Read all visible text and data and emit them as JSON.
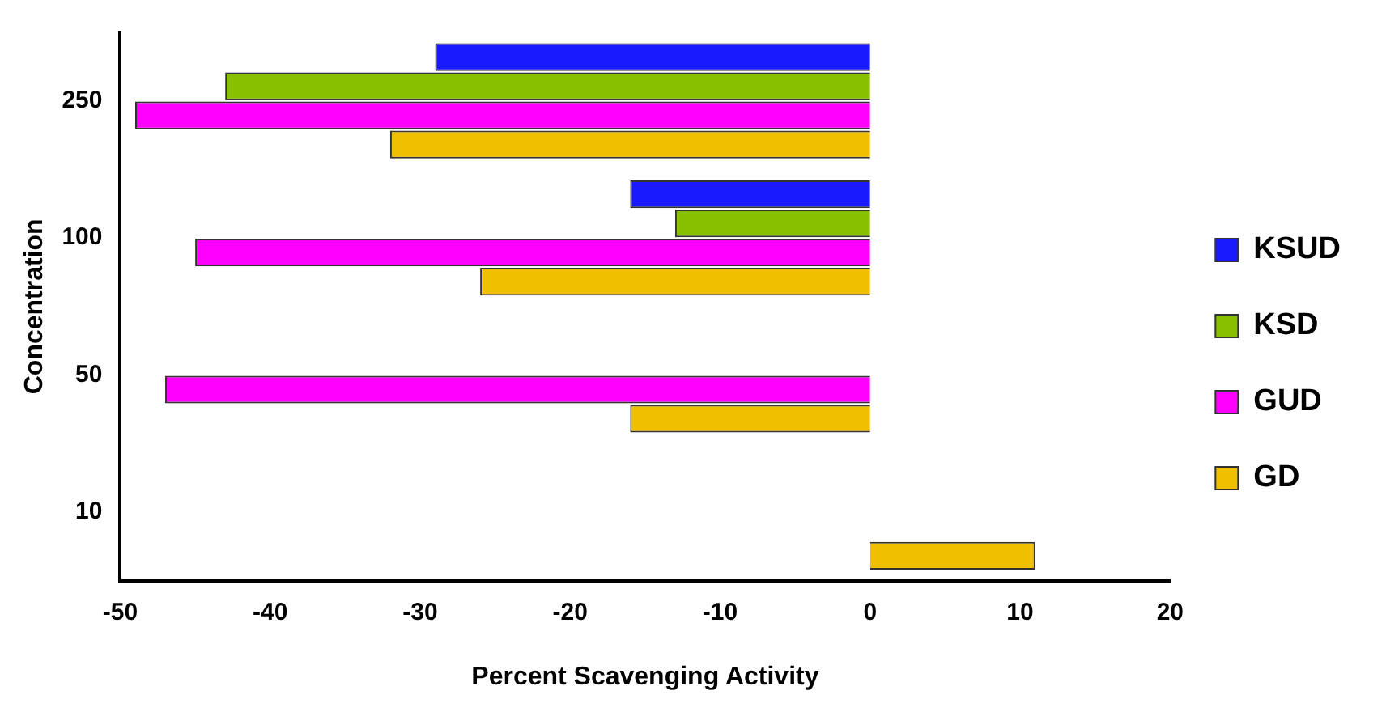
{
  "chart_data": {
    "type": "bar",
    "orientation": "horizontal",
    "xlabel": "Percent Scavenging Activity",
    "ylabel": "Concentration",
    "categories": [
      "250",
      "100",
      "50",
      "10"
    ],
    "series": [
      {
        "name": "KSUD",
        "color": "#1a1aff",
        "values": [
          -29,
          -16,
          0,
          0
        ]
      },
      {
        "name": "KSD",
        "color": "#88c000",
        "values": [
          -43,
          -13,
          0,
          0
        ]
      },
      {
        "name": "GUD",
        "color": "#ff00ff",
        "values": [
          -49,
          -45,
          -47,
          0
        ]
      },
      {
        "name": "GD",
        "color": "#f0c000",
        "values": [
          -32,
          -26,
          -16,
          11
        ]
      }
    ],
    "xlim": [
      -50,
      20
    ],
    "xticks": [
      -50,
      -40,
      -30,
      -20,
      -10,
      0,
      10,
      20
    ],
    "grid": false,
    "legend": "right"
  }
}
